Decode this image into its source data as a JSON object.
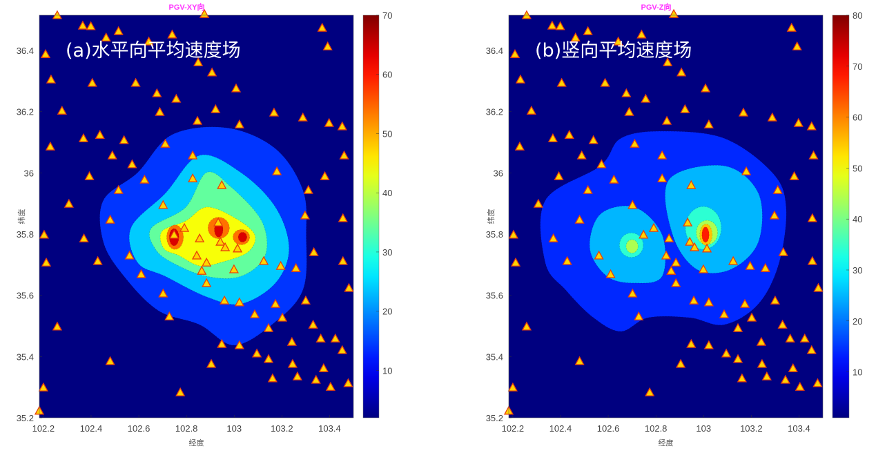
{
  "chart_data": [
    {
      "type": "heatmap",
      "subtype": "filled-contour-map",
      "title": "PGV-XY向",
      "panel_label": "(a)水平向平均速度场",
      "xlabel": "经度",
      "ylabel": "纬度",
      "xlim": [
        102.183,
        103.5
      ],
      "ylim": [
        35.2,
        36.515
      ],
      "xticks": [
        "102.2",
        "102.4",
        "102.6",
        "102.8",
        "103",
        "103.2",
        "103.4"
      ],
      "yticks": [
        "35.2",
        "35.4",
        "35.6",
        "35.8",
        "36",
        "36.2",
        "36.4"
      ],
      "colorbar": {
        "clim": [
          2,
          70
        ],
        "ticks": [
          "10",
          "20",
          "30",
          "40",
          "50",
          "60",
          "70"
        ],
        "colormap": "jet"
      },
      "background_value": 2,
      "contours": [
        {
          "value": 14,
          "polygon": [
            [
              102.451,
              35.91
            ],
            [
              102.595,
              36.001
            ],
            [
              102.74,
              36.125
            ],
            [
              102.971,
              36.147
            ],
            [
              103.173,
              36.079
            ],
            [
              103.288,
              35.944
            ],
            [
              103.302,
              35.798
            ],
            [
              103.288,
              35.617
            ],
            [
              103.158,
              35.504
            ],
            [
              102.999,
              35.437
            ],
            [
              102.855,
              35.504
            ],
            [
              102.682,
              35.55
            ],
            [
              102.538,
              35.662
            ],
            [
              102.451,
              35.775
            ]
          ]
        },
        {
          "value": 24,
          "polygon": [
            [
              102.567,
              35.82
            ],
            [
              102.711,
              35.933
            ],
            [
              102.855,
              36.057
            ],
            [
              103.028,
              36.001
            ],
            [
              103.173,
              35.888
            ],
            [
              103.23,
              35.753
            ],
            [
              103.173,
              35.64
            ],
            [
              103.028,
              35.572
            ],
            [
              102.884,
              35.595
            ],
            [
              102.711,
              35.662
            ],
            [
              102.595,
              35.707
            ]
          ]
        },
        {
          "value": 34,
          "polygon": [
            [
              102.653,
              35.82
            ],
            [
              102.797,
              35.888
            ],
            [
              102.884,
              36.001
            ],
            [
              102.985,
              35.955
            ],
            [
              103.115,
              35.843
            ],
            [
              103.13,
              35.73
            ],
            [
              103.028,
              35.662
            ],
            [
              102.884,
              35.662
            ],
            [
              102.74,
              35.707
            ],
            [
              102.668,
              35.753
            ]
          ]
        },
        {
          "value": 44,
          "polygon": [
            [
              102.697,
              35.809
            ],
            [
              102.797,
              35.843
            ],
            [
              102.884,
              35.888
            ],
            [
              103.0,
              35.854
            ],
            [
              103.086,
              35.798
            ],
            [
              103.057,
              35.741
            ],
            [
              102.942,
              35.707
            ],
            [
              102.855,
              35.696
            ],
            [
              102.768,
              35.73
            ],
            [
              102.705,
              35.753
            ]
          ]
        },
        {
          "value": 54,
          "ellipse": {
            "center": [
              102.752,
              35.79
            ],
            "radius": [
              0.035,
              0.04
            ]
          }
        },
        {
          "value": 54,
          "ellipse": {
            "center": [
              102.935,
              35.82
            ],
            "radius": [
              0.045,
              0.035
            ]
          }
        },
        {
          "value": 54,
          "ellipse": {
            "center": [
              103.03,
              35.79
            ],
            "radius": [
              0.035,
              0.025
            ]
          }
        },
        {
          "value": 64,
          "ellipse": {
            "center": [
              102.748,
              35.79
            ],
            "radius": [
              0.02,
              0.028
            ]
          }
        },
        {
          "value": 64,
          "ellipse": {
            "center": [
              102.935,
              35.815
            ],
            "radius": [
              0.018,
              0.025
            ]
          }
        },
        {
          "value": 64,
          "ellipse": {
            "center": [
              103.035,
              35.79
            ],
            "radius": [
              0.018,
              0.016
            ]
          }
        }
      ]
    },
    {
      "type": "heatmap",
      "subtype": "filled-contour-map",
      "title": "PGV-Z向",
      "panel_label": "(b)竖向平均速度场",
      "xlabel": "经度",
      "ylabel": "纬度",
      "xlim": [
        102.183,
        103.5
      ],
      "ylim": [
        35.2,
        36.515
      ],
      "xticks": [
        "102.2",
        "102.4",
        "102.6",
        "102.8",
        "103",
        "103.2",
        "103.4"
      ],
      "yticks": [
        "35.2",
        "35.4",
        "35.6",
        "35.8",
        "36",
        "36.2",
        "36.4"
      ],
      "colorbar": {
        "clim": [
          1,
          80
        ],
        "ticks": [
          "10",
          "20",
          "30",
          "40",
          "50",
          "60",
          "70",
          "80"
        ],
        "colormap": "jet"
      },
      "background_value": 1,
      "contours": [
        {
          "value": 14,
          "polygon": [
            [
              102.336,
              35.91
            ],
            [
              102.567,
              36.023
            ],
            [
              102.653,
              36.113
            ],
            [
              102.826,
              36.136
            ],
            [
              103.086,
              36.113
            ],
            [
              103.288,
              36.001
            ],
            [
              103.346,
              35.888
            ],
            [
              103.317,
              35.707
            ],
            [
              103.23,
              35.572
            ],
            [
              103.086,
              35.504
            ],
            [
              102.942,
              35.527
            ],
            [
              102.768,
              35.527
            ],
            [
              102.653,
              35.482
            ],
            [
              102.538,
              35.527
            ],
            [
              102.422,
              35.617
            ],
            [
              102.336,
              35.707
            ]
          ]
        },
        {
          "value": 25,
          "polygon": [
            [
              102.567,
              35.865
            ],
            [
              102.711,
              35.888
            ],
            [
              102.826,
              35.798
            ],
            [
              102.826,
              35.662
            ],
            [
              102.711,
              35.64
            ],
            [
              102.595,
              35.662
            ],
            [
              102.523,
              35.753
            ]
          ]
        },
        {
          "value": 25,
          "polygon": [
            [
              102.855,
              35.978
            ],
            [
              103.086,
              36.023
            ],
            [
              103.23,
              35.933
            ],
            [
              103.23,
              35.775
            ],
            [
              103.115,
              35.685
            ],
            [
              102.971,
              35.685
            ],
            [
              102.87,
              35.798
            ]
          ]
        },
        {
          "value": 34,
          "ellipse": {
            "center": [
              102.697,
              35.764
            ],
            "radius": [
              0.05,
              0.04
            ]
          }
        },
        {
          "value": 34,
          "ellipse": {
            "center": [
              102.999,
              35.82
            ],
            "radius": [
              0.075,
              0.07
            ]
          }
        },
        {
          "value": 44,
          "ellipse": {
            "center": [
              102.7,
              35.76
            ],
            "radius": [
              0.025,
              0.022
            ]
          }
        },
        {
          "value": 44,
          "ellipse": {
            "center": [
              103.014,
              35.805
            ],
            "radius": [
              0.045,
              0.04
            ]
          }
        },
        {
          "value": 55,
          "ellipse": {
            "center": [
              103.01,
              35.798
            ],
            "radius": [
              0.026,
              0.035
            ]
          }
        },
        {
          "value": 68,
          "ellipse": {
            "center": [
              103.008,
              35.798
            ],
            "radius": [
              0.015,
              0.025
            ]
          }
        }
      ]
    }
  ],
  "stations": [
    [
      102.258,
      36.515
    ],
    [
      102.209,
      36.388
    ],
    [
      102.365,
      36.481
    ],
    [
      102.399,
      36.479
    ],
    [
      102.463,
      36.442
    ],
    [
      102.515,
      36.463
    ],
    [
      102.642,
      36.429
    ],
    [
      102.74,
      36.452
    ],
    [
      102.875,
      36.519
    ],
    [
      103.369,
      36.474
    ],
    [
      103.392,
      36.413
    ],
    [
      102.232,
      36.305
    ],
    [
      102.405,
      36.294
    ],
    [
      102.587,
      36.294
    ],
    [
      102.676,
      36.26
    ],
    [
      102.757,
      36.242
    ],
    [
      102.849,
      36.361
    ],
    [
      102.907,
      36.328
    ],
    [
      103.008,
      36.276
    ],
    [
      102.278,
      36.203
    ],
    [
      102.688,
      36.199
    ],
    [
      102.922,
      36.208
    ],
    [
      103.022,
      36.158
    ],
    [
      103.167,
      36.197
    ],
    [
      103.288,
      36.181
    ],
    [
      103.398,
      36.163
    ],
    [
      103.453,
      36.152
    ],
    [
      102.229,
      36.086
    ],
    [
      102.368,
      36.113
    ],
    [
      102.437,
      36.124
    ],
    [
      102.538,
      36.107
    ],
    [
      102.711,
      36.095
    ],
    [
      102.846,
      36.17
    ],
    [
      102.489,
      36.057
    ],
    [
      102.572,
      36.028
    ],
    [
      103.461,
      36.057
    ],
    [
      102.393,
      35.989
    ],
    [
      102.624,
      35.978
    ],
    [
      102.826,
      36.057
    ],
    [
      103.179,
      36.005
    ],
    [
      103.311,
      35.944
    ],
    [
      103.38,
      35.989
    ],
    [
      102.307,
      35.899
    ],
    [
      102.515,
      35.944
    ],
    [
      102.702,
      35.895
    ],
    [
      102.48,
      35.847
    ],
    [
      103.297,
      35.861
    ],
    [
      103.456,
      35.852
    ],
    [
      102.203,
      35.798
    ],
    [
      102.37,
      35.786
    ],
    [
      103.334,
      35.741
    ],
    [
      102.212,
      35.707
    ],
    [
      102.428,
      35.712
    ],
    [
      102.561,
      35.73
    ],
    [
      103.124,
      35.712
    ],
    [
      103.195,
      35.696
    ],
    [
      103.456,
      35.712
    ],
    [
      102.61,
      35.669
    ],
    [
      102.702,
      35.606
    ],
    [
      103.259,
      35.689
    ],
    [
      103.481,
      35.624
    ],
    [
      102.959,
      35.583
    ],
    [
      103.022,
      35.577
    ],
    [
      103.173,
      35.572
    ],
    [
      103.202,
      35.527
    ],
    [
      103.086,
      35.538
    ],
    [
      103.3,
      35.583
    ],
    [
      103.331,
      35.504
    ],
    [
      103.363,
      35.459
    ],
    [
      103.424,
      35.459
    ],
    [
      102.258,
      35.498
    ],
    [
      102.728,
      35.531
    ],
    [
      102.948,
      35.441
    ],
    [
      103.022,
      35.437
    ],
    [
      103.144,
      35.493
    ],
    [
      103.242,
      35.448
    ],
    [
      102.48,
      35.385
    ],
    [
      102.904,
      35.376
    ],
    [
      103.095,
      35.41
    ],
    [
      103.144,
      35.392
    ],
    [
      103.245,
      35.376
    ],
    [
      103.375,
      35.362
    ],
    [
      103.453,
      35.421
    ],
    [
      103.161,
      35.329
    ],
    [
      103.265,
      35.335
    ],
    [
      103.343,
      35.324
    ],
    [
      103.404,
      35.301
    ],
    [
      103.478,
      35.313
    ],
    [
      102.2,
      35.299
    ],
    [
      102.774,
      35.283
    ],
    [
      102.183,
      35.223
    ],
    [
      102.748,
      35.798
    ],
    [
      102.791,
      35.82
    ],
    [
      102.855,
      35.786
    ],
    [
      102.942,
      35.775
    ],
    [
      102.962,
      35.757
    ],
    [
      103.014,
      35.753
    ],
    [
      102.843,
      35.73
    ],
    [
      102.884,
      35.707
    ],
    [
      102.948,
      35.96
    ],
    [
      102.933,
      35.838
    ],
    [
      102.864,
      35.68
    ],
    [
      102.884,
      35.64
    ],
    [
      102.999,
      35.685
    ],
    [
      102.826,
      35.982
    ]
  ],
  "colors": {
    "station_fill": "#ffd400",
    "station_edge": "#e8400a",
    "title": "#ff33ff"
  }
}
